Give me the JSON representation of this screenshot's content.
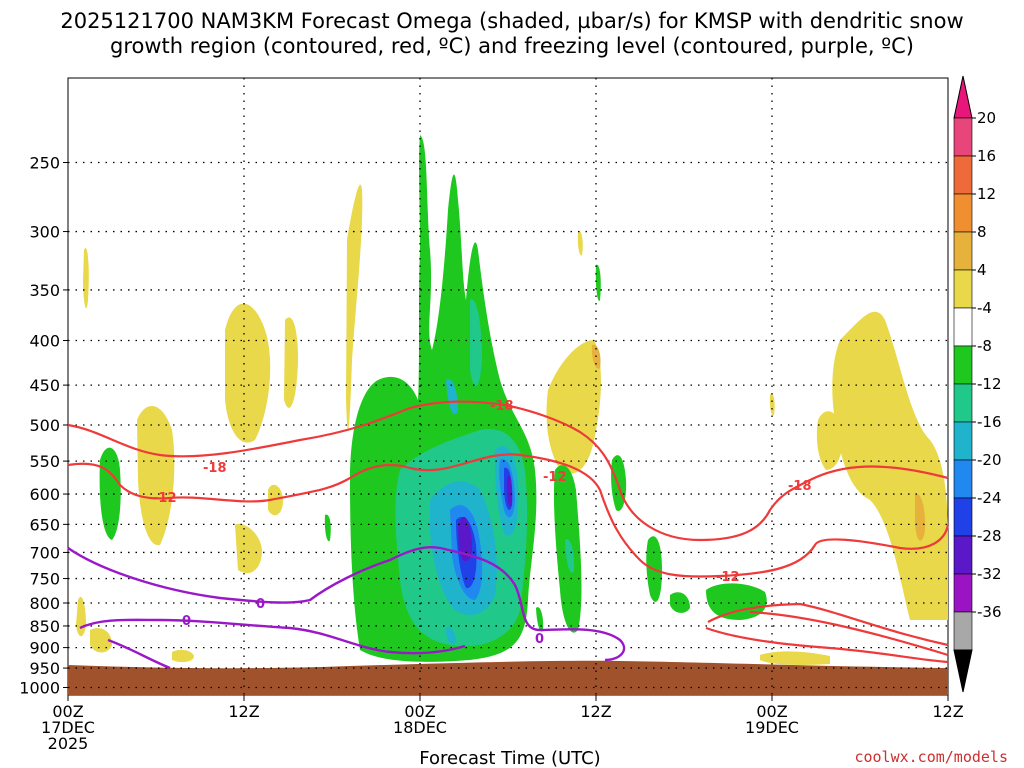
{
  "chart_data": {
    "type": "heatmap",
    "title_line1": "2025121700 NAM3KM Forecast Omega (shaded, µbar/s) for KMSP with dendritic snow",
    "title_line2": "growth region (contoured, red, ºC) and freezing level (contoured, purple, ºC)",
    "xlabel": "Forecast Time (UTC)",
    "ylabel": "",
    "credit": "coolwx.com/models",
    "x_ticks": [
      {
        "hour": 0,
        "line1": "00Z",
        "line2": "17DEC",
        "line3": "2025"
      },
      {
        "hour": 12,
        "line1": "12Z",
        "line2": "",
        "line3": ""
      },
      {
        "hour": 24,
        "line1": "00Z",
        "line2": "18DEC",
        "line3": ""
      },
      {
        "hour": 36,
        "line1": "12Z",
        "line2": "",
        "line3": ""
      },
      {
        "hour": 48,
        "line1": "00Z",
        "line2": "19DEC",
        "line3": ""
      },
      {
        "hour": 60,
        "line1": "12Z",
        "line2": "",
        "line3": ""
      }
    ],
    "xlim": [
      0,
      60
    ],
    "y_ticks": [
      "250",
      "300",
      "350",
      "400",
      "450",
      "500",
      "550",
      "600",
      "650",
      "700",
      "750",
      "800",
      "850",
      "900",
      "950",
      "1000"
    ],
    "y_tick_values": [
      250,
      300,
      350,
      400,
      450,
      500,
      550,
      600,
      650,
      700,
      750,
      800,
      850,
      900,
      950,
      1000
    ],
    "ylim": [
      200,
      1020
    ],
    "y_scale": "log",
    "y_inverted": true,
    "grid": true,
    "colorbar": {
      "labels": [
        "20",
        "16",
        "12",
        "8",
        "4",
        "-4",
        "-8",
        "-12",
        "-16",
        "-20",
        "-24",
        "-28",
        "-32",
        "-36"
      ],
      "colors": [
        "#e8457a",
        "#ef6a3a",
        "#ef8f30",
        "#e6b23c",
        "#e8d84a",
        "#ffffff",
        "#1fc81f",
        "#20c88a",
        "#20b4cc",
        "#2088ee",
        "#2040e8",
        "#5a18c8",
        "#9a14c4",
        "#a8a8a8"
      ],
      "top_arrow_color": "#e8157a",
      "bottom_arrow_color": "#000000"
    },
    "contour_labels": {
      "red": [
        "-18",
        "-12",
        "-12",
        "-18",
        "-12",
        "-18"
      ],
      "purple": [
        "0",
        "0",
        "0"
      ]
    },
    "colors": {
      "dgz_contour": "#ee3a3a",
      "freezing_contour": "#9a18c8",
      "terrain": "#a0522d",
      "grid": "#000000",
      "credit": "#cc3030"
    }
  }
}
